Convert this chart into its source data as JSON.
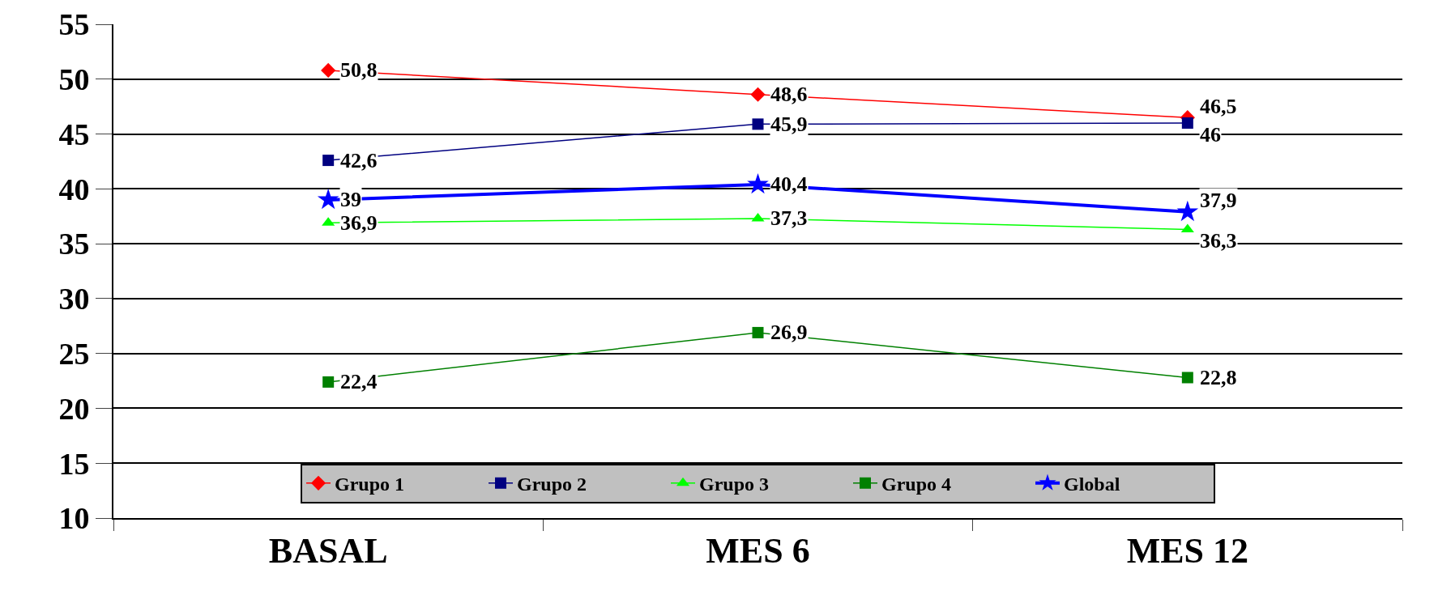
{
  "chart_data": {
    "type": "line",
    "categories": [
      "BASAL",
      "MES 6",
      "MES 12"
    ],
    "series": [
      {
        "name": "Grupo 1",
        "color": "#ff0000",
        "marker": "diamond",
        "values": [
          50.8,
          48.6,
          46.5
        ],
        "value_labels": [
          "50,8",
          "48,6",
          "46,5"
        ]
      },
      {
        "name": "Grupo 2",
        "color": "#000080",
        "marker": "square",
        "values": [
          42.6,
          45.9,
          46
        ],
        "value_labels": [
          "42,6",
          "45,9",
          "46"
        ]
      },
      {
        "name": "Grupo 3",
        "color": "#00ff00",
        "marker": "triangle",
        "values": [
          36.9,
          37.3,
          36.3
        ],
        "value_labels": [
          "36,9",
          "37,3",
          "36,3"
        ]
      },
      {
        "name": "Grupo 4",
        "color": "#008000",
        "marker": "square",
        "values": [
          22.4,
          26.9,
          22.8
        ],
        "value_labels": [
          "22,4",
          "26,9",
          "22,8"
        ]
      },
      {
        "name": "Global",
        "color": "#0000ff",
        "marker": "star",
        "values": [
          39,
          40.4,
          37.9
        ],
        "value_labels": [
          "39",
          "40,4",
          "37,9"
        ]
      }
    ],
    "ylim": [
      10,
      55
    ],
    "yticks": [
      10,
      15,
      20,
      25,
      30,
      35,
      40,
      45,
      50,
      55
    ],
    "grid": "y",
    "legend": "bottom",
    "line_style": "solid"
  }
}
